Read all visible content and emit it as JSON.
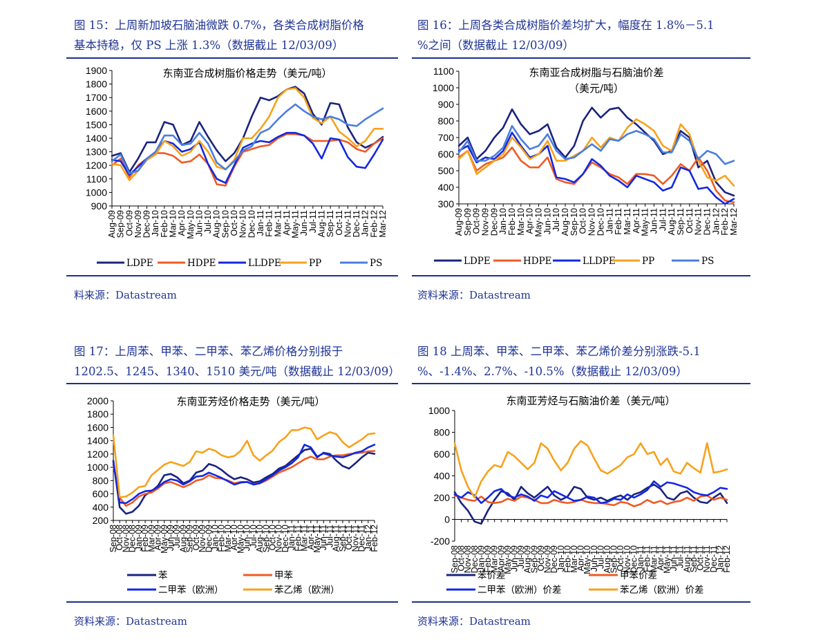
{
  "panels": [
    {
      "title_lines": [
        "图 15：上周新加坡石脑油微跌 0.7%，各类合成树脂价格",
        "基本持稳，仅 PS 上涨 1.3%（数据截止 12/03/09）"
      ],
      "source": "料来源：Datastream"
    },
    {
      "title_lines": [
        "图 16：上周各类合成树脂价差均扩大，幅度在 1.8%－5.1",
        "%之间（数据截止 12/03/09）"
      ],
      "source": "资料来源：Datastream"
    },
    {
      "title_lines": [
        "图  17：上周苯、甲苯、二甲苯、苯乙烯价格分别报于",
        "1202.5、1245、1340、1510 美元/吨（数据截止 12/03/09）"
      ],
      "source": "资料来源：Datastream"
    },
    {
      "title_lines": [
        "图 18 上周苯、甲苯、二甲苯、苯乙烯价差分别涨跌-5.1",
        "%、-1.4%、2.7%、-10.5%（数据截止 12/03/09）"
      ],
      "source": "资料来源：Datastream"
    }
  ],
  "chart_data": [
    {
      "type": "line",
      "title": "东南亚合成树脂价格走势（美元/吨）",
      "ylim": [
        900,
        1900
      ],
      "yticks": [
        900,
        1000,
        1100,
        1200,
        1300,
        1400,
        1500,
        1600,
        1700,
        1800,
        1900
      ],
      "x": [
        "Aug-09",
        "Sep-09",
        "Oct-09",
        "Nov-09",
        "Dec-09",
        "Jan-10",
        "Feb-10",
        "Mar-10",
        "Apr-10",
        "May-10",
        "Jun-10",
        "Jul-10",
        "Aug-10",
        "Sep-10",
        "Oct-10",
        "Nov-10",
        "Dec-10",
        "Jan-11",
        "Feb-11",
        "Mar-11",
        "Apr-11",
        "May-11",
        "Jun-11",
        "Jul-11",
        "Aug-11",
        "Sep-11",
        "Oct-11",
        "Nov-11",
        "Dec-11",
        "Jan-12",
        "Feb-12",
        "Mar-12"
      ],
      "grid": false,
      "legend_position": "bottom",
      "series": [
        {
          "name": "LDPE",
          "color": "#1a237e",
          "values": [
            1270,
            1290,
            1150,
            1250,
            1370,
            1370,
            1520,
            1500,
            1350,
            1380,
            1520,
            1410,
            1310,
            1230,
            1290,
            1400,
            1560,
            1700,
            1680,
            1710,
            1760,
            1780,
            1730,
            1580,
            1500,
            1660,
            1650,
            1480,
            1370,
            1330,
            1360,
            1410
          ]
        },
        {
          "name": "HDPE",
          "color": "#f05a22",
          "values": [
            1200,
            1250,
            1110,
            1200,
            1250,
            1290,
            1290,
            1270,
            1220,
            1230,
            1280,
            1210,
            1060,
            1050,
            1190,
            1300,
            1320,
            1340,
            1350,
            1400,
            1430,
            1430,
            1420,
            1380,
            1380,
            1380,
            1390,
            1370,
            1320,
            1300,
            1360,
            1400
          ]
        },
        {
          "name": "LLDPE",
          "color": "#1328e0",
          "values": [
            1240,
            1230,
            1130,
            1190,
            1250,
            1300,
            1380,
            1360,
            1300,
            1320,
            1370,
            1210,
            1100,
            1070,
            1200,
            1330,
            1360,
            1380,
            1370,
            1410,
            1440,
            1440,
            1420,
            1360,
            1250,
            1400,
            1390,
            1260,
            1190,
            1180,
            1280,
            1390
          ]
        },
        {
          "name": "PP",
          "color": "#f7a21b",
          "values": [
            1210,
            1200,
            1090,
            1160,
            1240,
            1280,
            1380,
            1340,
            1270,
            1300,
            1380,
            1300,
            1190,
            1170,
            1240,
            1400,
            1400,
            1470,
            1560,
            1700,
            1760,
            1770,
            1700,
            1550,
            1510,
            1560,
            1450,
            1400,
            1340,
            1380,
            1470,
            1470
          ]
        },
        {
          "name": "PS",
          "color": "#4a7de0",
          "values": [
            1230,
            1280,
            1140,
            1160,
            1250,
            1300,
            1420,
            1420,
            1350,
            1360,
            1440,
            1360,
            1220,
            1170,
            1230,
            1310,
            1340,
            1440,
            1470,
            1540,
            1600,
            1650,
            1600,
            1560,
            1540,
            1560,
            1540,
            1500,
            1490,
            1540,
            1580,
            1620
          ]
        }
      ]
    },
    {
      "type": "line",
      "title": "东南亚合成树脂与石脑油价差",
      "subtitle": "（美元/吨）",
      "ylim": [
        300,
        1100
      ],
      "yticks": [
        300,
        400,
        500,
        600,
        700,
        800,
        900,
        1000,
        1100
      ],
      "x": [
        "Aug-09",
        "Sep-09",
        "Oct-09",
        "Nov-09",
        "Dec-09",
        "Jan-10",
        "Feb-10",
        "Mar-10",
        "Apr-10",
        "May-10",
        "Jun-10",
        "Jul-10",
        "Aug-10",
        "Sep-10",
        "Oct-10",
        "Nov-10",
        "Dec-10",
        "Jan-11",
        "Feb-11",
        "Mar-11",
        "Apr-11",
        "May-11",
        "Jun-11",
        "Jul-11",
        "Aug-11",
        "Sep-11",
        "Oct-11",
        "Nov-11",
        "Dec-11",
        "Jan-12",
        "Feb-12",
        "Mar-12"
      ],
      "grid": false,
      "legend_position": "bottom",
      "series": [
        {
          "name": "LDPE",
          "color": "#1a237e",
          "values": [
            650,
            700,
            570,
            620,
            700,
            760,
            870,
            780,
            720,
            740,
            780,
            640,
            580,
            650,
            800,
            880,
            820,
            870,
            880,
            820,
            780,
            730,
            680,
            600,
            620,
            740,
            700,
            520,
            560,
            430,
            370,
            350
          ]
        },
        {
          "name": "HDPE",
          "color": "#f05a22",
          "values": [
            580,
            620,
            500,
            540,
            560,
            580,
            640,
            560,
            520,
            520,
            580,
            450,
            430,
            420,
            480,
            550,
            520,
            480,
            460,
            420,
            480,
            480,
            470,
            420,
            470,
            540,
            500,
            580,
            500,
            380,
            320,
            310
          ]
        },
        {
          "name": "LLDPE",
          "color": "#1328e0",
          "values": [
            620,
            650,
            550,
            580,
            570,
            620,
            730,
            650,
            580,
            600,
            650,
            460,
            450,
            430,
            480,
            570,
            530,
            470,
            440,
            400,
            470,
            450,
            430,
            380,
            400,
            520,
            500,
            390,
            400,
            340,
            300,
            330
          ]
        },
        {
          "name": "PP",
          "color": "#f7a21b",
          "values": [
            570,
            620,
            480,
            520,
            560,
            600,
            700,
            640,
            570,
            600,
            680,
            560,
            560,
            590,
            620,
            700,
            640,
            700,
            680,
            760,
            810,
            780,
            740,
            650,
            620,
            780,
            720,
            560,
            460,
            440,
            470,
            410
          ]
        },
        {
          "name": "PS",
          "color": "#4a7de0",
          "values": [
            610,
            680,
            560,
            560,
            590,
            640,
            770,
            690,
            630,
            650,
            720,
            620,
            570,
            580,
            620,
            660,
            620,
            690,
            680,
            720,
            740,
            720,
            690,
            610,
            610,
            720,
            680,
            570,
            620,
            600,
            540,
            560
          ]
        }
      ]
    },
    {
      "type": "line",
      "title": "东南亚芳烃价格走势（美元/吨）",
      "ylim": [
        200,
        2000
      ],
      "yticks": [
        200,
        400,
        600,
        800,
        1000,
        1200,
        1400,
        1600,
        1800,
        2000
      ],
      "x": [
        "Sep-08",
        "Oct-08",
        "Nov-08",
        "Dec-08",
        "Jan-09",
        "Feb-09",
        "Mar-09",
        "Apr-09",
        "May-09",
        "Jun-09",
        "Jul-09",
        "Aug-09",
        "Sep-09",
        "Oct-09",
        "Nov-09",
        "Dec-09",
        "Jan-10",
        "Feb-10",
        "Mar-10",
        "Apr-10",
        "May-10",
        "Jun-10",
        "Jul-10",
        "Aug-10",
        "Sep-10",
        "Oct-10",
        "Nov-10",
        "Dec-10",
        "Jan-11",
        "Feb-11",
        "Mar-11",
        "Apr-11",
        "May-11",
        "Jun-11",
        "Jul-11",
        "Aug-11",
        "Sep-11",
        "Oct-11",
        "Nov-11",
        "Dec-11",
        "Jan-12",
        "Feb-12"
      ],
      "grid": false,
      "legend_position": "bottom",
      "series": [
        {
          "name": "苯",
          "color": "#1a237e",
          "values": [
            1100,
            400,
            300,
            330,
            420,
            580,
            640,
            720,
            880,
            900,
            850,
            760,
            800,
            920,
            950,
            1050,
            1020,
            960,
            880,
            820,
            850,
            820,
            770,
            790,
            850,
            900,
            980,
            1020,
            1100,
            1180,
            1260,
            1280,
            1150,
            1220,
            1200,
            1100,
            1020,
            980,
            1060,
            1150,
            1220,
            1202
          ]
        },
        {
          "name": "甲苯",
          "color": "#f05a22",
          "values": [
            1040,
            540,
            420,
            470,
            560,
            600,
            620,
            680,
            760,
            780,
            740,
            700,
            740,
            800,
            820,
            880,
            840,
            830,
            800,
            760,
            780,
            780,
            740,
            760,
            800,
            860,
            920,
            960,
            1000,
            1060,
            1120,
            1160,
            1120,
            1120,
            1160,
            1180,
            1180,
            1200,
            1210,
            1220,
            1240,
            1245
          ]
        },
        {
          "name": "二甲苯（欧洲）",
          "color": "#1328e0",
          "values": [
            1080,
            470,
            460,
            520,
            600,
            640,
            650,
            700,
            780,
            820,
            800,
            740,
            790,
            860,
            870,
            920,
            880,
            840,
            790,
            740,
            770,
            780,
            740,
            760,
            820,
            880,
            950,
            1000,
            1060,
            1150,
            1340,
            1300,
            1160,
            1210,
            1180,
            1160,
            1150,
            1180,
            1220,
            1240,
            1300,
            1340
          ]
        },
        {
          "name": "苯乙烯（欧洲）",
          "color": "#f7a21b",
          "values": [
            1480,
            550,
            560,
            620,
            700,
            720,
            880,
            960,
            1040,
            1080,
            1050,
            1020,
            1080,
            1240,
            1220,
            1280,
            1250,
            1180,
            1150,
            1170,
            1250,
            1400,
            1180,
            1100,
            1180,
            1250,
            1380,
            1450,
            1560,
            1560,
            1600,
            1580,
            1420,
            1480,
            1530,
            1500,
            1380,
            1300,
            1360,
            1420,
            1500,
            1510
          ]
        }
      ]
    },
    {
      "type": "line",
      "title": "东南亚芳烃与石脑油价差（美元/吨）",
      "ylim": [
        -200,
        1000
      ],
      "yticks": [
        -200,
        0,
        200,
        400,
        600,
        800,
        1000
      ],
      "x": [
        "Sep-08",
        "Oct-08",
        "Nov-08",
        "Dec-08",
        "Jan-09",
        "Feb-09",
        "Mar-09",
        "Apr-09",
        "May-09",
        "Jun-09",
        "Jul-09",
        "Aug-09",
        "Sep-09",
        "Oct-09",
        "Nov-09",
        "Dec-09",
        "Jan-10",
        "Feb-10",
        "Mar-10",
        "Apr-10",
        "May-10",
        "Jun-10",
        "Jul-10",
        "Aug-10",
        "Sep-10",
        "Oct-10",
        "Nov-10",
        "Dec-10",
        "Jan-11",
        "Feb-11",
        "Mar-11",
        "Apr-11",
        "May-11",
        "Jun-11",
        "Jul-11",
        "Aug-11",
        "Sep-11",
        "Oct-11",
        "Nov-11",
        "Dec-11",
        "Jan-12",
        "Feb-12"
      ],
      "grid": false,
      "legend_position": "bottom",
      "series": [
        {
          "name": "苯价差",
          "color": "#1a237e",
          "values": [
            250,
            150,
            80,
            -20,
            -40,
            80,
            180,
            260,
            240,
            180,
            300,
            240,
            200,
            250,
            300,
            220,
            180,
            210,
            300,
            280,
            200,
            180,
            200,
            170,
            200,
            220,
            180,
            230,
            250,
            290,
            320,
            280,
            200,
            180,
            240,
            260,
            200,
            160,
            150,
            200,
            240,
            150
          ]
        },
        {
          "name": "甲苯价差",
          "color": "#f05a22",
          "values": [
            220,
            200,
            180,
            170,
            210,
            160,
            150,
            160,
            190,
            170,
            210,
            200,
            180,
            150,
            150,
            180,
            160,
            150,
            160,
            180,
            160,
            150,
            150,
            140,
            130,
            160,
            150,
            120,
            140,
            180,
            150,
            170,
            140,
            160,
            170,
            200,
            170,
            210,
            220,
            180,
            200,
            180
          ]
        },
        {
          "name": "二甲苯（欧洲）价差",
          "color": "#1328e0",
          "values": [
            230,
            200,
            250,
            220,
            150,
            200,
            260,
            280,
            220,
            200,
            230,
            210,
            170,
            220,
            200,
            260,
            230,
            200,
            170,
            180,
            210,
            200,
            150,
            160,
            190,
            180,
            230,
            200,
            230,
            270,
            350,
            300,
            340,
            330,
            310,
            290,
            250,
            230,
            220,
            250,
            290,
            280
          ]
        },
        {
          "name": "苯乙烯（欧洲）价差",
          "color": "#f7a21b",
          "values": [
            700,
            450,
            300,
            200,
            350,
            440,
            500,
            480,
            620,
            580,
            520,
            460,
            520,
            700,
            650,
            540,
            450,
            520,
            650,
            720,
            680,
            560,
            450,
            420,
            460,
            500,
            570,
            600,
            700,
            600,
            620,
            500,
            560,
            440,
            420,
            520,
            470,
            430,
            700,
            430,
            440,
            460
          ]
        }
      ]
    }
  ]
}
